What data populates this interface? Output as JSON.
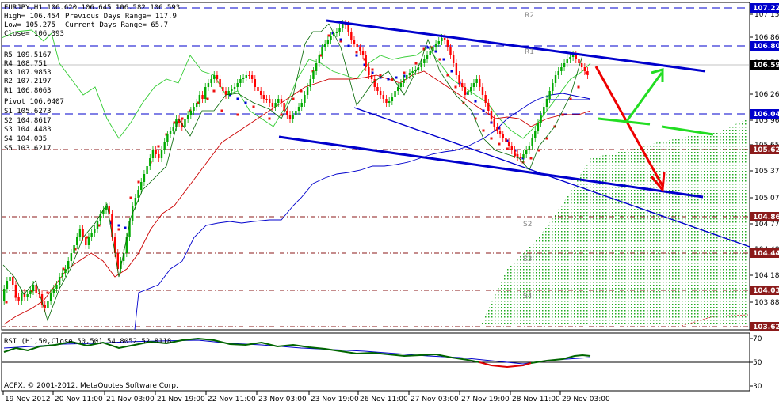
{
  "header": {
    "symbol_line": "EURJPY,H1  106.620 106.645 106.582 106.593",
    "high": "High= 106.454",
    "prev_range": "Previous Days Range= 117.9",
    "low": "Low= 105.275",
    "curr_range": "Current Days Range= 65.7",
    "close": "Close= 106.393"
  },
  "pivots": {
    "r5": "R5 109.5167",
    "r4": "R4 108.751",
    "r3": "R3 107.9853",
    "r2": "R2 107.2197",
    "r1": "R1 106.8063",
    "pivot": "Pivot 106.0407",
    "s1": "S1 105.6273",
    "s2": "S2 104.8617",
    "s3": "S3 104.4483",
    "s4": "S4 104.035",
    "s5": "S5 103.6217"
  },
  "level_labels": {
    "r2": "R2",
    "r1": "R1",
    "s2": "S2",
    "s3": "S3",
    "s4": "S4"
  },
  "copyright": "ACFX, © 2001-2012, MetaQuotes Software Corp.",
  "rsi_label": "RSI (H1,50,Close,50,50) 54.8052 52.8118",
  "chart_data": {
    "type": "candlestick",
    "symbol": "EURJPY",
    "timeframe": "H1",
    "y_ticks": [
      "107.150",
      "106.865",
      "106.580",
      "106.260",
      "105.965",
      "105.655",
      "105.370",
      "105.075",
      "104.775",
      "104.480",
      "104.185",
      "103.885"
    ],
    "y_price_tags": [
      {
        "text": "107.220",
        "color": "#0000cc"
      },
      {
        "text": "106.806",
        "color": "#0000cc"
      },
      {
        "text": "106.593",
        "color": "#000000"
      },
      {
        "text": "106.041",
        "color": "#0000cc"
      },
      {
        "text": "105.627",
        "color": "#8b1a1a"
      },
      {
        "text": "104.862",
        "color": "#8b1a1a"
      },
      {
        "text": "104.448",
        "color": "#8b1a1a"
      },
      {
        "text": "104.035",
        "color": "#8b1a1a"
      },
      {
        "text": "103.622",
        "color": "#8b1a1a"
      }
    ],
    "x_ticks": [
      "19 Nov 2012",
      "20 Nov 11:00",
      "21 Nov 03:00",
      "21 Nov 19:00",
      "22 Nov 11:00",
      "23 Nov 03:00",
      "23 Nov 19:00",
      "26 Nov 11:00",
      "27 Nov 03:00",
      "27 Nov 19:00",
      "28 Nov 11:00",
      "29 Nov 03:00"
    ],
    "rsi_ticks": [
      "70",
      "50",
      "30"
    ],
    "ylim": [
      103.55,
      107.25
    ]
  },
  "colors": {
    "bull": "#00aa00",
    "bear": "#ff0000",
    "trend": "#0000cc",
    "arrow_down": "#ee0000",
    "arrow_up": "#22dd22",
    "cloud": "#22aa22"
  }
}
